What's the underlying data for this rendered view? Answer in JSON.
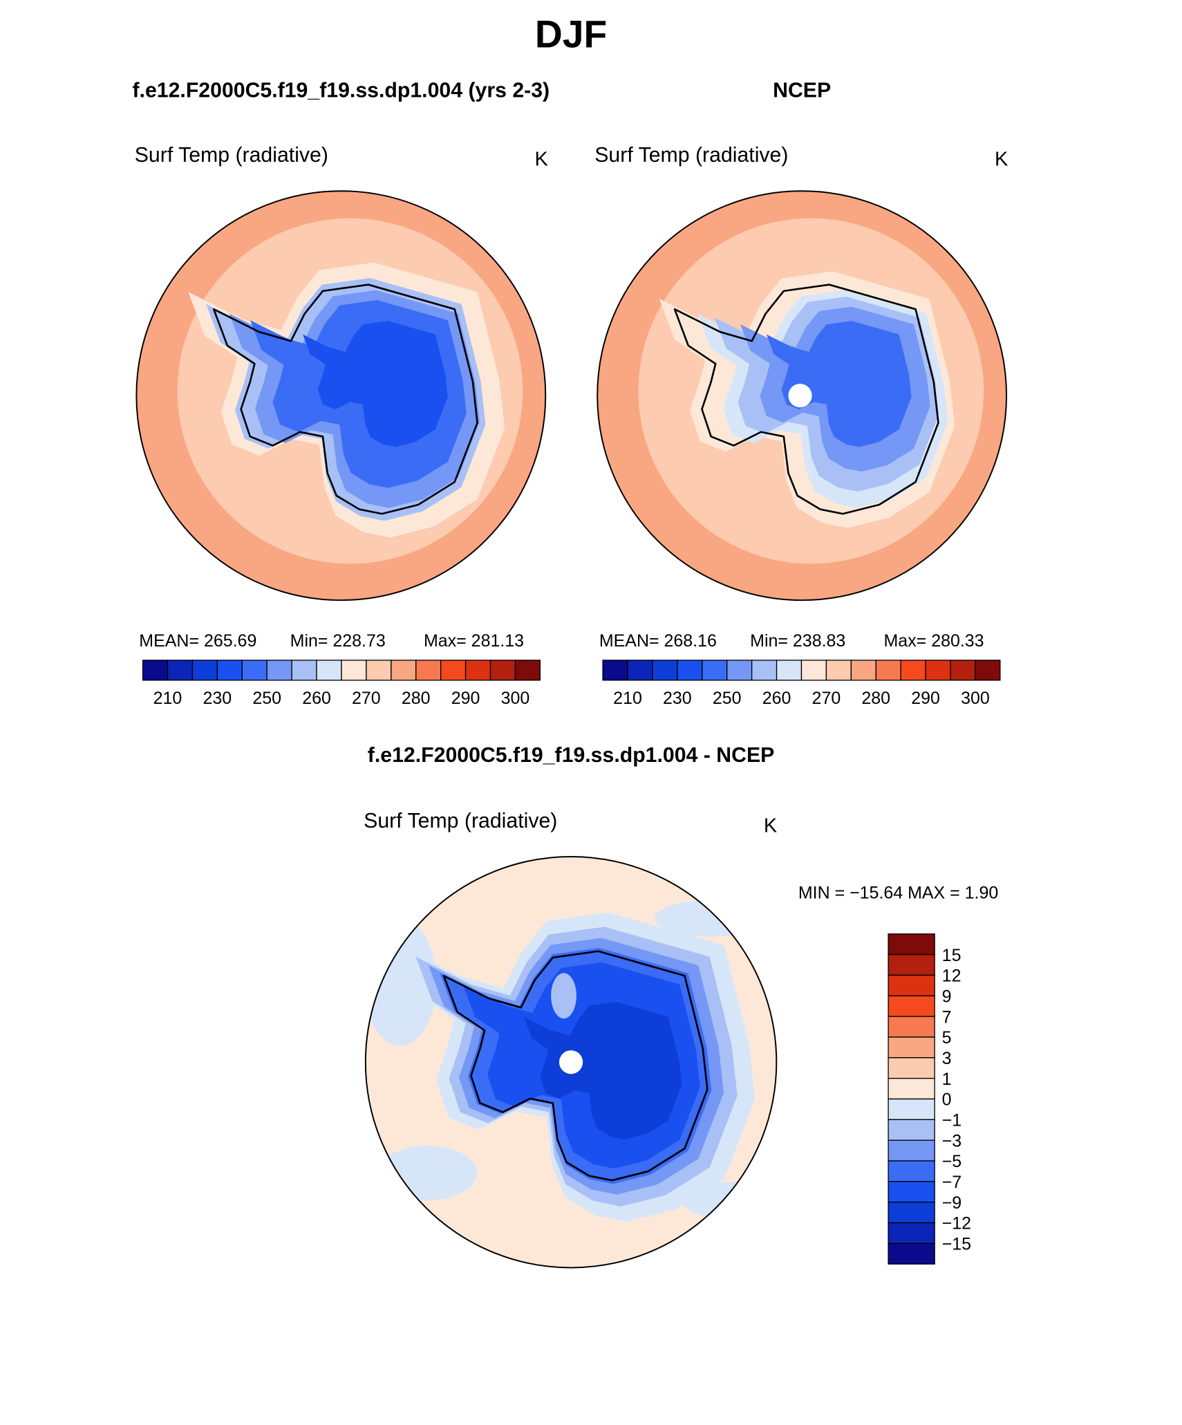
{
  "title": "DJF",
  "panels": [
    {
      "case": "f.e12.F2000C5.f19_f19.ss.dp1.004 (yrs 2-3)",
      "variable": "Surf Temp (radiative)",
      "units": "K",
      "stats": [
        "MEAN=  265.69",
        "Min=  228.73",
        "Max=  281.13"
      ]
    },
    {
      "case": "NCEP",
      "variable": "Surf Temp (radiative)",
      "units": "K",
      "stats": [
        "MEAN=  268.16",
        "Min=  238.83",
        "Max=  280.33"
      ]
    }
  ],
  "colorbar": {
    "colors": [
      "#0a0a8c",
      "#0b25b8",
      "#0d3ed8",
      "#1a50f0",
      "#3b6cf5",
      "#7597f5",
      "#a8c0f5",
      "#d6e6f8",
      "#fde8d8",
      "#fccbb0",
      "#f9a682",
      "#f7794f",
      "#f54a1e",
      "#dd3212",
      "#b3200e",
      "#7f0a0a"
    ],
    "ticks": [
      210,
      230,
      250,
      260,
      270,
      280,
      290,
      300
    ]
  },
  "difference": {
    "case": "f.e12.F2000C5.f19_f19.ss.dp1.004 - NCEP",
    "variable": "Surf Temp (radiative)",
    "units": "K",
    "stats": "MIN = −15.64 MAX =    1.90",
    "colorbar": {
      "colors": [
        "#7f0a0a",
        "#b3200e",
        "#dd3212",
        "#f54a1e",
        "#f7794f",
        "#f9a682",
        "#fccbb0",
        "#fde8d8",
        "#d6e6f8",
        "#a8c0f5",
        "#7597f5",
        "#3b6cf5",
        "#1a50f0",
        "#0d3ed8",
        "#0b25b8",
        "#0a0a8c"
      ],
      "ticks": [
        15,
        12,
        9,
        7,
        5,
        3,
        1,
        0,
        {
          "value": -1,
          "label": "−1"
        },
        {
          "value": -3,
          "label": "−3"
        },
        {
          "value": -5,
          "label": "−5"
        },
        {
          "value": -7,
          "label": "−7"
        },
        {
          "value": -9,
          "label": "−9"
        },
        {
          "value": -12,
          "label": "−12"
        },
        {
          "value": -15,
          "label": "−15"
        }
      ]
    }
  }
}
